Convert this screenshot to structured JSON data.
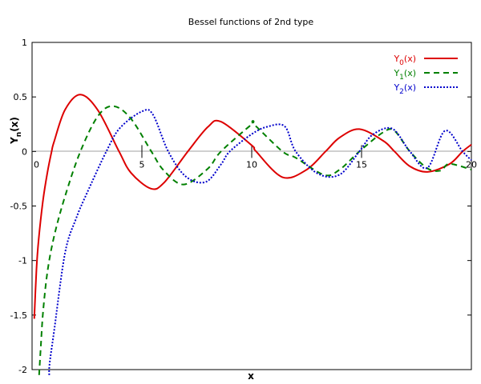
{
  "chart_data": {
    "type": "line",
    "title": "Bessel functions of 2nd type",
    "xlabel": "x",
    "ylabel": "Y",
    "ylabel_sub": "n",
    "ylabel_suffix": "(x)",
    "xlim": [
      0,
      20
    ],
    "ylim": [
      -2,
      1
    ],
    "x_ticks": [
      0,
      5,
      10,
      15,
      20
    ],
    "y_ticks": [
      1,
      0.5,
      0,
      -0.5,
      -1,
      -1.5,
      -2
    ],
    "y_tick_labels": [
      "1",
      "0.5",
      "0",
      "-0.5",
      "-1",
      "-1.5",
      "-2"
    ],
    "grid": false,
    "legend_position": "top-right",
    "series": [
      {
        "name": "Y0(x)",
        "name_main": "Y",
        "name_sub": "0",
        "name_suffix": "(x)",
        "color": "#dd0000",
        "style": "solid",
        "order": 0,
        "x": [
          0.1,
          0.2,
          0.3,
          0.5,
          0.7,
          0.89,
          1.0,
          1.5,
          2.2,
          3.0,
          3.96,
          4.5,
          5.4,
          6.0,
          7.09,
          8.0,
          8.6,
          10.0,
          10.2,
          11.4,
          12.5,
          13.36,
          14.0,
          14.9,
          16.0,
          16.5,
          17.2,
          18.0,
          19.0,
          19.6,
          20.0
        ],
        "y": [
          -1.534,
          -1.081,
          -0.807,
          -0.445,
          -0.191,
          0.0,
          0.088,
          0.382,
          0.521,
          0.377,
          0.0,
          -0.195,
          -0.34,
          -0.288,
          0.0,
          0.224,
          0.273,
          0.056,
          0.0,
          -0.236,
          -0.167,
          0.0,
          0.127,
          0.205,
          0.096,
          0.0,
          -0.136,
          -0.187,
          -0.116,
          0.0,
          0.063
        ]
      },
      {
        "name": "Y1(x)",
        "name_main": "Y",
        "name_sub": "1",
        "name_suffix": "(x)",
        "color": "#008000",
        "style": "dashed",
        "order": 1,
        "x": [
          0.32,
          0.4,
          0.5,
          0.7,
          1.0,
          1.5,
          2.2,
          3.0,
          3.7,
          4.5,
          5.43,
          6.0,
          6.9,
          8.0,
          8.6,
          10.0,
          10.1,
          11.4,
          12.0,
          13.3,
          14.0,
          14.9,
          16.0,
          16.5,
          17.2,
          18.0,
          18.6,
          19.0,
          20.0
        ],
        "y": [
          -2.05,
          -1.781,
          -1.471,
          -1.103,
          -0.781,
          -0.412,
          0.0,
          0.325,
          0.416,
          0.301,
          0.0,
          -0.175,
          -0.303,
          -0.158,
          0.0,
          0.249,
          0.249,
          0.0,
          -0.057,
          -0.215,
          -0.167,
          0.0,
          0.178,
          0.189,
          0.0,
          -0.155,
          -0.176,
          -0.114,
          -0.166
        ]
      },
      {
        "name": "Y2(x)",
        "name_main": "Y",
        "name_sub": "2",
        "name_suffix": "(x)",
        "color": "#0000cc",
        "style": "dotted",
        "order": 2,
        "x": [
          0.78,
          0.8,
          1.0,
          1.5,
          2.0,
          2.5,
          3.38,
          4.0,
          5.0,
          5.5,
          6.2,
          7.0,
          7.9,
          8.6,
          9.0,
          10.0,
          10.7,
          11.5,
          12.0,
          13.0,
          14.0,
          14.9,
          15.5,
          16.4,
          17.2,
          18.0,
          18.8,
          19.6,
          20.0
        ],
        "y": [
          -2.05,
          -1.943,
          -1.651,
          -0.932,
          -0.617,
          -0.381,
          0.0,
          0.215,
          0.367,
          0.339,
          0.0,
          -0.23,
          -0.28,
          -0.119,
          0.0,
          0.159,
          0.226,
          0.231,
          0.0,
          -0.202,
          -0.213,
          0.0,
          0.153,
          0.209,
          0.0,
          -0.15,
          0.19,
          0.0,
          -0.08
        ]
      }
    ]
  }
}
